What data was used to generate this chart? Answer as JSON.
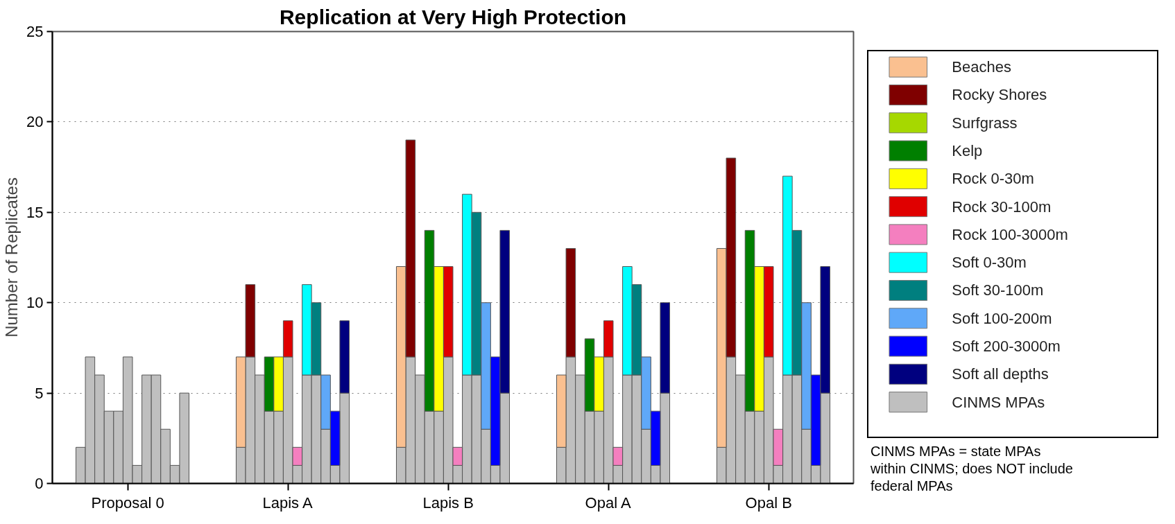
{
  "chart_data": {
    "type": "bar",
    "stacked": true,
    "title": "Replication at Very High Protection",
    "ylabel": "Number of Replicates",
    "categories": [
      null,
      null,
      null,
      null,
      null,
      "Proposal 0",
      null,
      null,
      null,
      null,
      null,
      null,
      null,
      null,
      null,
      null,
      null,
      null,
      null,
      null,
      null,
      null,
      "Lapis A",
      null,
      null,
      null,
      null,
      null,
      null,
      null,
      null,
      null,
      null,
      null,
      null,
      null,
      null,
      null,
      null,
      "Lapis B",
      null,
      null,
      null,
      null,
      null,
      null,
      null,
      null,
      null,
      null,
      null,
      null,
      null,
      null,
      null,
      null,
      "Opal A",
      null,
      null,
      null,
      null,
      null,
      null,
      null,
      null,
      null,
      null,
      null,
      null,
      null,
      null,
      null,
      null,
      "Opal B",
      null,
      null,
      null,
      null,
      null,
      null
    ],
    "ylim": [
      0,
      25
    ],
    "yticks": [
      0,
      5,
      10,
      15,
      20,
      25
    ],
    "grid": "y",
    "legend": "right",
    "series": [
      {
        "name": "CINMS MPAs",
        "color": "#bfbfbf",
        "values": [
          2,
          7,
          6,
          4,
          4,
          7,
          1,
          6,
          6,
          3,
          1,
          5,
          null,
          null,
          null,
          null,
          null,
          2,
          7,
          6,
          4,
          4,
          7,
          1,
          6,
          6,
          3,
          1,
          5,
          null,
          null,
          null,
          null,
          null,
          2,
          7,
          6,
          4,
          4,
          7,
          1,
          6,
          6,
          3,
          1,
          5,
          null,
          null,
          null,
          null,
          null,
          2,
          7,
          6,
          4,
          4,
          7,
          1,
          6,
          6,
          3,
          1,
          5,
          null,
          null,
          null,
          null,
          null,
          2,
          7,
          6,
          4,
          4,
          7,
          1,
          6,
          6,
          3,
          1,
          5
        ]
      },
      {
        "name": "Beaches",
        "color": "#fac090",
        "values": [
          null,
          null,
          null,
          null,
          null,
          null,
          null,
          null,
          null,
          null,
          null,
          null,
          null,
          null,
          null,
          null,
          null,
          5,
          null,
          null,
          null,
          null,
          null,
          null,
          null,
          null,
          null,
          null,
          null,
          null,
          null,
          null,
          null,
          null,
          10,
          null,
          null,
          null,
          null,
          null,
          null,
          null,
          null,
          null,
          null,
          null,
          null,
          null,
          null,
          null,
          null,
          4,
          null,
          null,
          null,
          null,
          null,
          null,
          null,
          null,
          null,
          null,
          null,
          null,
          null,
          null,
          null,
          null,
          11,
          null,
          null,
          null,
          null,
          null,
          null,
          null,
          null,
          null,
          null,
          null
        ]
      },
      {
        "name": "Rocky Shores",
        "color": "#7f0000",
        "values": [
          null,
          null,
          null,
          null,
          null,
          null,
          null,
          null,
          null,
          null,
          null,
          null,
          null,
          null,
          null,
          null,
          null,
          null,
          4,
          null,
          null,
          null,
          null,
          null,
          null,
          null,
          null,
          null,
          null,
          null,
          null,
          null,
          null,
          null,
          null,
          12,
          null,
          null,
          null,
          null,
          null,
          null,
          null,
          null,
          null,
          null,
          null,
          null,
          null,
          null,
          null,
          null,
          6,
          null,
          null,
          null,
          null,
          null,
          null,
          null,
          null,
          null,
          null,
          null,
          null,
          null,
          null,
          null,
          null,
          11,
          null,
          null,
          null,
          null,
          null,
          null,
          null,
          null,
          null,
          null
        ]
      },
      {
        "name": "Surfgrass",
        "color": "#a6d800",
        "values": [
          null,
          null,
          null,
          null,
          null,
          null,
          null,
          null,
          null,
          null,
          null,
          null,
          null,
          null,
          null,
          null,
          null,
          null,
          null,
          null,
          null,
          null,
          null,
          null,
          null,
          null,
          null,
          null,
          null,
          null,
          null,
          null,
          null,
          null,
          null,
          null,
          null,
          null,
          null,
          null,
          null,
          null,
          null,
          null,
          null,
          null,
          null,
          null,
          null,
          null,
          null,
          null,
          null,
          null,
          null,
          null,
          null,
          null,
          null,
          null,
          null,
          null,
          null,
          null,
          null,
          null,
          null,
          null,
          null,
          null,
          null,
          null,
          null,
          null,
          null,
          null,
          null,
          null,
          null,
          null
        ]
      },
      {
        "name": "Kelp",
        "color": "#007f00",
        "values": [
          null,
          null,
          null,
          null,
          null,
          null,
          null,
          null,
          null,
          null,
          null,
          null,
          null,
          null,
          null,
          null,
          null,
          null,
          null,
          null,
          3,
          null,
          null,
          null,
          null,
          null,
          null,
          null,
          null,
          null,
          null,
          null,
          null,
          null,
          null,
          null,
          null,
          10,
          null,
          null,
          null,
          null,
          null,
          null,
          null,
          null,
          null,
          null,
          null,
          null,
          null,
          null,
          null,
          null,
          4,
          null,
          null,
          null,
          null,
          null,
          null,
          null,
          null,
          null,
          null,
          null,
          null,
          null,
          null,
          null,
          null,
          10,
          null,
          null,
          null,
          null,
          null,
          null,
          null,
          null
        ]
      },
      {
        "name": "Rock 0-30m",
        "color": "#ffff00",
        "values": [
          null,
          null,
          null,
          null,
          null,
          null,
          null,
          null,
          null,
          null,
          null,
          null,
          null,
          null,
          null,
          null,
          null,
          null,
          null,
          null,
          null,
          3,
          null,
          null,
          null,
          null,
          null,
          null,
          null,
          null,
          null,
          null,
          null,
          null,
          null,
          null,
          null,
          null,
          8,
          null,
          null,
          null,
          null,
          null,
          null,
          null,
          null,
          null,
          null,
          null,
          null,
          null,
          null,
          null,
          null,
          3,
          null,
          null,
          null,
          null,
          null,
          null,
          null,
          null,
          null,
          null,
          null,
          null,
          null,
          null,
          null,
          null,
          8,
          null,
          null,
          null,
          null,
          null,
          null,
          null
        ]
      },
      {
        "name": "Rock 30-100m",
        "color": "#e00000",
        "values": [
          null,
          null,
          null,
          null,
          null,
          null,
          null,
          null,
          null,
          null,
          null,
          null,
          null,
          null,
          null,
          null,
          null,
          null,
          null,
          null,
          null,
          null,
          2,
          null,
          null,
          null,
          null,
          null,
          null,
          null,
          null,
          null,
          null,
          null,
          null,
          null,
          null,
          null,
          null,
          5,
          null,
          null,
          null,
          null,
          null,
          null,
          null,
          null,
          null,
          null,
          null,
          null,
          null,
          null,
          null,
          null,
          2,
          null,
          null,
          null,
          null,
          null,
          null,
          null,
          null,
          null,
          null,
          null,
          null,
          null,
          null,
          null,
          null,
          5,
          null,
          null,
          null,
          null,
          null,
          null
        ]
      },
      {
        "name": "Rock 100-3000m",
        "color": "#f47fbf",
        "values": [
          null,
          null,
          null,
          null,
          null,
          null,
          null,
          null,
          null,
          null,
          null,
          null,
          null,
          null,
          null,
          null,
          null,
          null,
          null,
          null,
          null,
          null,
          null,
          1,
          null,
          null,
          null,
          null,
          null,
          null,
          null,
          null,
          null,
          null,
          null,
          null,
          null,
          null,
          null,
          null,
          1,
          null,
          null,
          null,
          null,
          null,
          null,
          null,
          null,
          null,
          null,
          null,
          null,
          null,
          null,
          null,
          null,
          1,
          null,
          null,
          null,
          null,
          null,
          null,
          null,
          null,
          null,
          null,
          null,
          null,
          null,
          null,
          null,
          null,
          2,
          null,
          null,
          null,
          null,
          null
        ]
      },
      {
        "name": "Soft 0-30m",
        "color": "#00ffff",
        "values": [
          null,
          null,
          null,
          null,
          null,
          null,
          null,
          null,
          null,
          null,
          null,
          null,
          null,
          null,
          null,
          null,
          null,
          null,
          null,
          null,
          null,
          null,
          null,
          null,
          5,
          null,
          null,
          null,
          null,
          null,
          null,
          null,
          null,
          null,
          null,
          null,
          null,
          null,
          null,
          null,
          null,
          10,
          null,
          null,
          null,
          null,
          null,
          null,
          null,
          null,
          null,
          null,
          null,
          null,
          null,
          null,
          null,
          null,
          6,
          null,
          null,
          null,
          null,
          null,
          null,
          null,
          null,
          null,
          null,
          null,
          null,
          null,
          null,
          null,
          null,
          11,
          null,
          null,
          null,
          null
        ]
      },
      {
        "name": "Soft 30-100m",
        "color": "#007f7f",
        "values": [
          null,
          null,
          null,
          null,
          null,
          null,
          null,
          null,
          null,
          null,
          null,
          null,
          null,
          null,
          null,
          null,
          null,
          null,
          null,
          null,
          null,
          null,
          null,
          null,
          null,
          4,
          null,
          null,
          null,
          null,
          null,
          null,
          null,
          null,
          null,
          null,
          null,
          null,
          null,
          null,
          null,
          null,
          9,
          null,
          null,
          null,
          null,
          null,
          null,
          null,
          null,
          null,
          null,
          null,
          null,
          null,
          null,
          null,
          null,
          5,
          null,
          null,
          null,
          null,
          null,
          null,
          null,
          null,
          null,
          null,
          null,
          null,
          null,
          null,
          null,
          null,
          8,
          null,
          null,
          null
        ]
      },
      {
        "name": "Soft 100-200m",
        "color": "#5fa8f8",
        "values": [
          null,
          null,
          null,
          null,
          null,
          null,
          null,
          null,
          null,
          null,
          null,
          null,
          null,
          null,
          null,
          null,
          null,
          null,
          null,
          null,
          null,
          null,
          null,
          null,
          null,
          null,
          3,
          null,
          null,
          null,
          null,
          null,
          null,
          null,
          null,
          null,
          null,
          null,
          null,
          null,
          null,
          null,
          null,
          7,
          null,
          null,
          null,
          null,
          null,
          null,
          null,
          null,
          null,
          null,
          null,
          null,
          null,
          null,
          null,
          null,
          4,
          null,
          null,
          null,
          null,
          null,
          null,
          null,
          null,
          null,
          null,
          null,
          null,
          null,
          null,
          null,
          null,
          7,
          null,
          null
        ]
      },
      {
        "name": "Soft 200-3000m",
        "color": "#0000ff",
        "values": [
          null,
          null,
          null,
          null,
          null,
          null,
          null,
          null,
          null,
          null,
          null,
          null,
          null,
          null,
          null,
          null,
          null,
          null,
          null,
          null,
          null,
          null,
          null,
          null,
          null,
          null,
          null,
          3,
          null,
          null,
          null,
          null,
          null,
          null,
          null,
          null,
          null,
          null,
          null,
          null,
          null,
          null,
          null,
          null,
          6,
          null,
          null,
          null,
          null,
          null,
          null,
          null,
          null,
          null,
          null,
          null,
          null,
          null,
          null,
          null,
          null,
          3,
          null,
          null,
          null,
          null,
          null,
          null,
          null,
          null,
          null,
          null,
          null,
          null,
          null,
          null,
          null,
          null,
          5,
          null
        ]
      },
      {
        "name": "Soft all depths",
        "color": "#00007f",
        "values": [
          null,
          null,
          null,
          null,
          null,
          null,
          null,
          null,
          null,
          null,
          null,
          null,
          null,
          null,
          null,
          null,
          null,
          null,
          null,
          null,
          null,
          null,
          null,
          null,
          null,
          null,
          null,
          null,
          4,
          null,
          null,
          null,
          null,
          null,
          null,
          null,
          null,
          null,
          null,
          null,
          null,
          null,
          null,
          null,
          null,
          9,
          null,
          null,
          null,
          null,
          null,
          null,
          null,
          null,
          null,
          null,
          null,
          null,
          null,
          null,
          null,
          null,
          5,
          null,
          null,
          null,
          null,
          null,
          null,
          null,
          null,
          null,
          null,
          null,
          null,
          null,
          null,
          null,
          null,
          7
        ]
      }
    ],
    "annotations": [
      "CINMS MPAs = state MPAs within CINMS; does NOT include federal MPAs"
    ]
  }
}
